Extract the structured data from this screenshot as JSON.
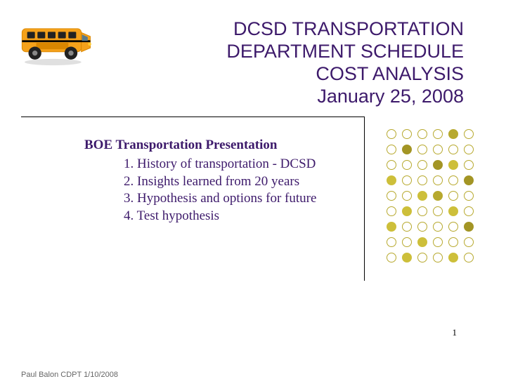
{
  "title": {
    "lines": [
      "DCSD TRANSPORTATION",
      "DEPARTMENT SCHEDULE",
      "COST ANALYSIS",
      "January 25, 2008"
    ],
    "color": "#3d1a6b",
    "fontsize": 27
  },
  "body": {
    "heading": "BOE Transportation Presentation",
    "heading_color": "#3d1a6b",
    "items": [
      "1. History of transportation - DCSD",
      "2. Insights learned from 20 years",
      "3. Hypothesis and options for future",
      "4. Test hypothesis"
    ],
    "item_color": "#3d1a6b",
    "fontsize": 19
  },
  "dots": {
    "rows": 9,
    "cols": 6,
    "fill_colors": [
      "#cdbf3a",
      "#b7a92e",
      "#a39525"
    ],
    "empty_color": "#ffffff",
    "empty_border": "#b7a92e",
    "pattern": [
      [
        0,
        0,
        0,
        0,
        1,
        0
      ],
      [
        0,
        1,
        0,
        0,
        0,
        0
      ],
      [
        0,
        0,
        0,
        1,
        1,
        0
      ],
      [
        1,
        0,
        0,
        0,
        0,
        1
      ],
      [
        0,
        0,
        1,
        1,
        0,
        0
      ],
      [
        0,
        1,
        0,
        0,
        1,
        0
      ],
      [
        1,
        0,
        0,
        0,
        0,
        1
      ],
      [
        0,
        0,
        1,
        0,
        0,
        0
      ],
      [
        0,
        1,
        0,
        0,
        1,
        0
      ]
    ]
  },
  "page_number": "1",
  "footer": "Paul Balon CDPT 1/10/2008",
  "bus": {
    "body_color": "#f5a11a",
    "accent_color": "#d98600",
    "window_color": "#222222",
    "wheel_color": "#222222",
    "hub_color": "#888888",
    "stripe_color": "#000000"
  },
  "background_color": "#ffffff",
  "rule_color": "#000000"
}
